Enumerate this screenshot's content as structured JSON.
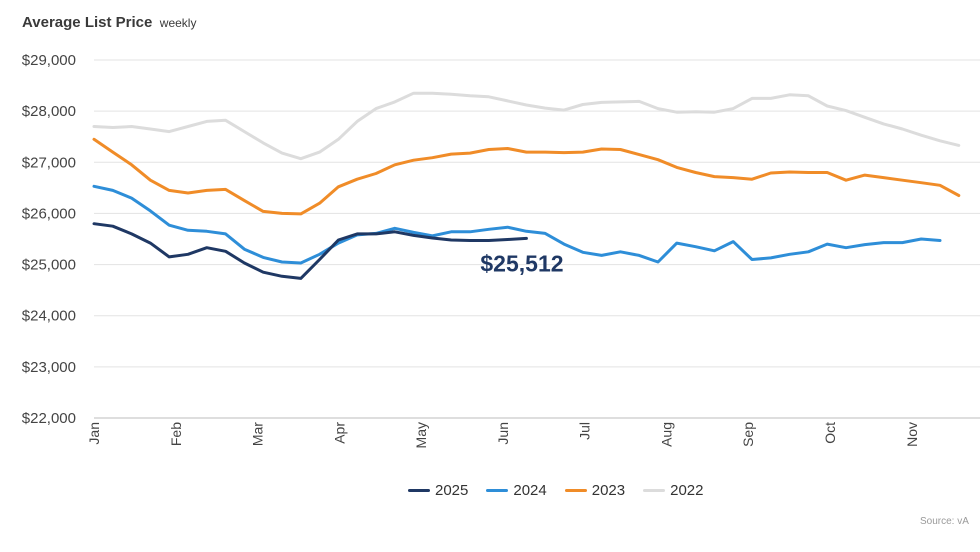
{
  "chart_data": {
    "type": "line",
    "title": "Average List Price",
    "subtitle": "weekly",
    "xlabel": "",
    "ylabel": "",
    "ylim": [
      22000,
      29000
    ],
    "yticks": [
      22000,
      23000,
      24000,
      25000,
      26000,
      27000,
      28000,
      29000
    ],
    "ytick_labels": [
      "$22,000",
      "$23,000",
      "$24,000",
      "$25,000",
      "$26,000",
      "$27,000",
      "$28,000",
      "$29,000"
    ],
    "x_unit": "week",
    "x_ticks": [
      1,
      5.35,
      9.7,
      14.05,
      18.4,
      22.75,
      27.1,
      31.45,
      35.8,
      40.15,
      44.5
    ],
    "x_tick_labels": [
      "Jan",
      "Feb",
      "Mar",
      "Apr",
      "May",
      "Jun",
      "Jul",
      "Aug",
      "Sep",
      "Oct",
      "Nov"
    ],
    "grid": true,
    "legend_position": "bottom",
    "annotation": {
      "text": "$25,512",
      "week": 24,
      "value": 25512
    },
    "source": "Source: vA",
    "series": [
      {
        "name": "2025",
        "color": "#1f3864",
        "values": [
          25800,
          25750,
          25600,
          25420,
          25150,
          25200,
          25330,
          25260,
          25030,
          24850,
          24770,
          24730,
          25100,
          25480,
          25600,
          25600,
          25640,
          25570,
          25520,
          25480,
          25470,
          25470,
          25490,
          25512
        ]
      },
      {
        "name": "2024",
        "color": "#2e8ed8",
        "values": [
          26530,
          26450,
          26300,
          26050,
          25770,
          25670,
          25650,
          25600,
          25300,
          25140,
          25050,
          25030,
          25200,
          25420,
          25580,
          25610,
          25710,
          25630,
          25560,
          25640,
          25640,
          25690,
          25730,
          25650,
          25610,
          25400,
          25240,
          25180,
          25250,
          25180,
          25050,
          25420,
          25350,
          25270,
          25450,
          25100,
          25130,
          25200,
          25250,
          25400,
          25330,
          25390,
          25430,
          25430,
          25500,
          25470
        ]
      },
      {
        "name": "2023",
        "color": "#f08c28",
        "values": [
          27450,
          27200,
          26950,
          26650,
          26450,
          26400,
          26450,
          26470,
          26250,
          26040,
          26000,
          25990,
          26200,
          26520,
          26670,
          26780,
          26950,
          27040,
          27090,
          27160,
          27180,
          27250,
          27270,
          27200,
          27200,
          27190,
          27200,
          27260,
          27250,
          27150,
          27050,
          26900,
          26800,
          26720,
          26700,
          26670,
          26790,
          26810,
          26800,
          26800,
          26650,
          26750,
          26700,
          26650,
          26600,
          26550,
          26350
        ]
      },
      {
        "name": "2022",
        "color": "#dcdcdc",
        "values": [
          27700,
          27680,
          27700,
          27650,
          27600,
          27700,
          27800,
          27820,
          27600,
          27380,
          27180,
          27070,
          27200,
          27450,
          27800,
          28050,
          28180,
          28350,
          28350,
          28330,
          28300,
          28280,
          28200,
          28120,
          28060,
          28020,
          28130,
          28170,
          28180,
          28190,
          28050,
          27980,
          27990,
          27980,
          28050,
          28250,
          28250,
          28320,
          28300,
          28100,
          28010,
          27880,
          27750,
          27650,
          27530,
          27420,
          27330
        ]
      }
    ]
  }
}
